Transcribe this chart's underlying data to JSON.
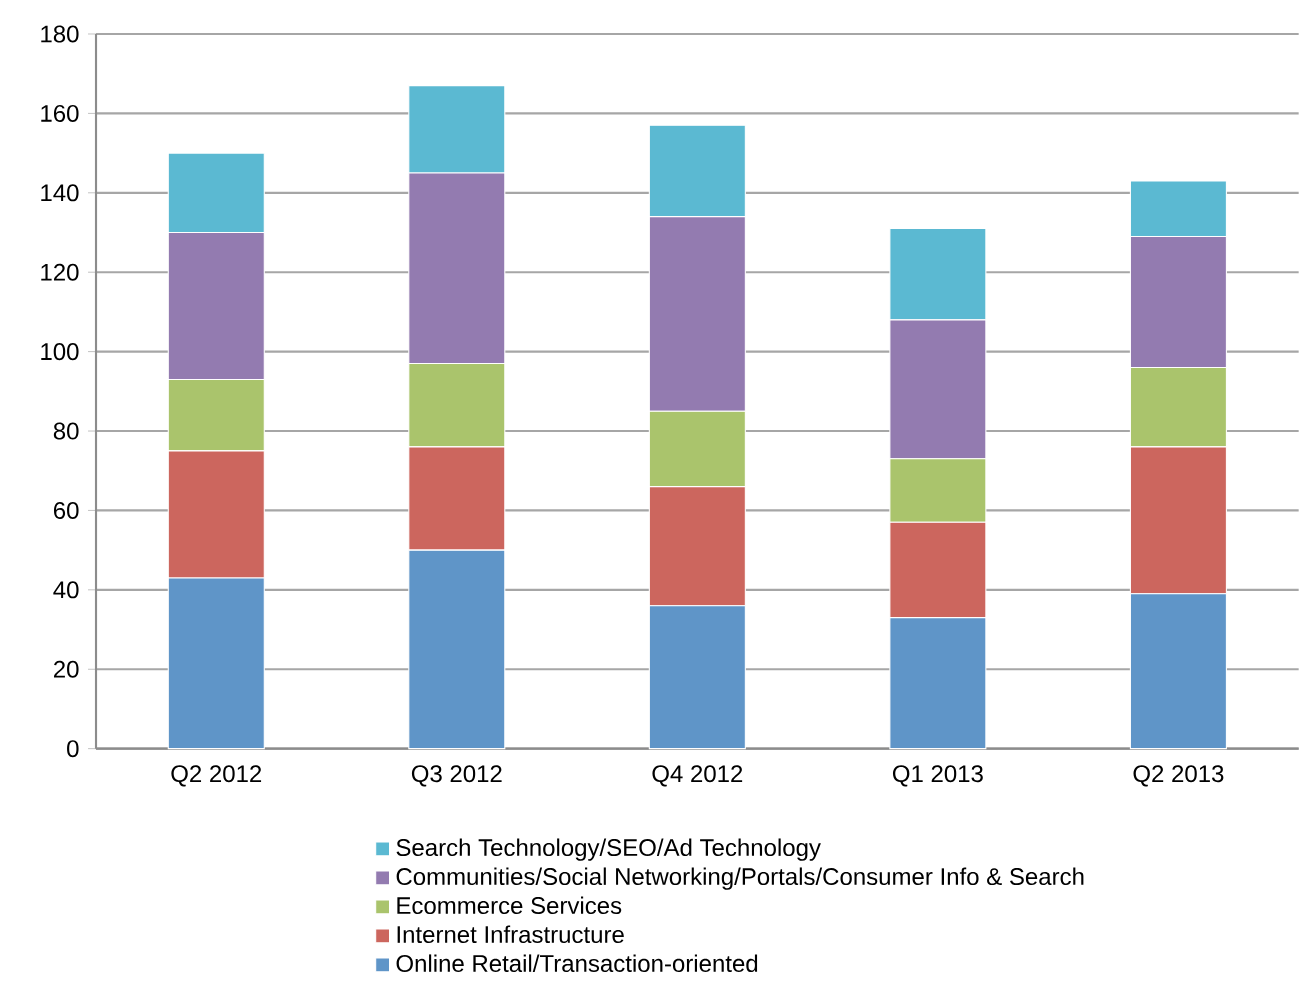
{
  "chart_data": {
    "type": "bar",
    "stacked": true,
    "categories": [
      "Q2 2012",
      "Q3 2012",
      "Q4 2012",
      "Q1 2013",
      "Q2 2013"
    ],
    "series": [
      {
        "name": "Online Retail/Transaction-oriented",
        "color": "#5f95c8",
        "values": [
          43,
          50,
          36,
          33,
          39
        ]
      },
      {
        "name": "Internet Infrastructure",
        "color": "#cc665e",
        "values": [
          32,
          26,
          30,
          24,
          37
        ]
      },
      {
        "name": "Ecommerce Services",
        "color": "#aac46c",
        "values": [
          18,
          21,
          19,
          16,
          20
        ]
      },
      {
        "name": "Communities/Social Networking/Portals/Consumer Info & Search",
        "color": "#937bb0",
        "values": [
          37,
          48,
          49,
          35,
          33
        ]
      },
      {
        "name": "Search Technology/SEO/Ad Technology",
        "color": "#5bb9d2",
        "values": [
          20,
          22,
          23,
          23,
          14
        ]
      }
    ],
    "ylim": [
      0,
      180
    ],
    "yticks": [
      0,
      20,
      40,
      60,
      80,
      100,
      120,
      140,
      160,
      180
    ],
    "grid": "y",
    "legend": "bottom"
  }
}
